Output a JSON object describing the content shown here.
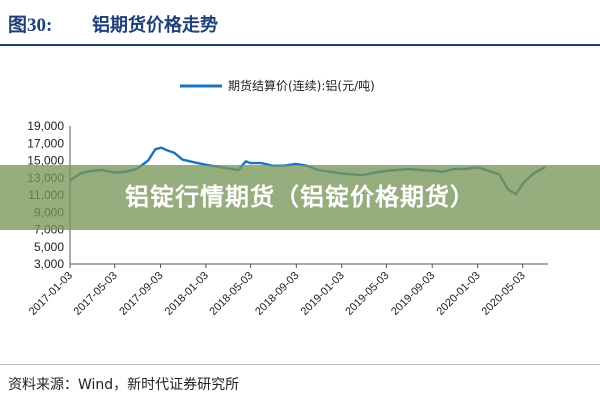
{
  "figure": {
    "label": "图30:",
    "title": "铝期货价格走势"
  },
  "banner": {
    "text": "铝锭行情期货（铝锭价格期货）"
  },
  "source": {
    "text": "资料来源：Wind，新时代证券研究所"
  },
  "colors": {
    "header": "#1f3f78",
    "line": "#1b74b8",
    "banner": "#7a965a"
  },
  "chart_data": {
    "type": "line",
    "title": "",
    "xlabel": "",
    "ylabel": "",
    "ylim": [
      3000,
      19000
    ],
    "yticks": [
      "19,000",
      "17,000",
      "15,000",
      "13,000",
      "11,000",
      "9,000",
      "7,000",
      "5,000",
      "3,000"
    ],
    "ytick_values": [
      19000,
      17000,
      15000,
      13000,
      11000,
      9000,
      7000,
      5000,
      3000
    ],
    "xlim": [
      "2017-01-03",
      "2020-07-10"
    ],
    "xticks": [
      "2017-01-03",
      "2017-05-03",
      "2017-09-03",
      "2018-01-03",
      "2018-05-03",
      "2018-09-03",
      "2019-01-03",
      "2019-05-03",
      "2019-09-03",
      "2020-01-03",
      "2020-05-03"
    ],
    "grid": false,
    "legend_position": "top-center",
    "series": [
      {
        "name": "期货结算价(连续):铝(元/吨)",
        "x": [
          "2017-01-03",
          "2017-02-01",
          "2017-03-01",
          "2017-04-01",
          "2017-05-01",
          "2017-06-01",
          "2017-07-01",
          "2017-08-01",
          "2017-08-20",
          "2017-09-05",
          "2017-09-20",
          "2017-10-10",
          "2017-11-01",
          "2017-12-01",
          "2018-01-03",
          "2018-02-01",
          "2018-03-01",
          "2018-04-01",
          "2018-04-20",
          "2018-05-03",
          "2018-06-01",
          "2018-07-01",
          "2018-08-01",
          "2018-09-03",
          "2018-10-01",
          "2018-11-01",
          "2018-12-01",
          "2019-01-03",
          "2019-02-01",
          "2019-03-01",
          "2019-04-01",
          "2019-05-03",
          "2019-06-01",
          "2019-07-01",
          "2019-08-01",
          "2019-09-03",
          "2019-10-01",
          "2019-11-01",
          "2019-12-01",
          "2020-01-03",
          "2020-02-01",
          "2020-03-01",
          "2020-03-25",
          "2020-04-15",
          "2020-05-03",
          "2020-06-01",
          "2020-07-01"
        ],
        "y": [
          12700,
          13500,
          13800,
          13900,
          13600,
          13700,
          14000,
          15000,
          16300,
          16500,
          16200,
          15900,
          15100,
          14800,
          14500,
          14300,
          14100,
          13900,
          14900,
          14700,
          14700,
          14400,
          14400,
          14600,
          14400,
          13900,
          13700,
          13500,
          13400,
          13300,
          13600,
          13800,
          13900,
          14000,
          13900,
          13800,
          13700,
          14000,
          14000,
          14200,
          13800,
          13400,
          11600,
          11100,
          12300,
          13500,
          14200
        ]
      }
    ]
  }
}
